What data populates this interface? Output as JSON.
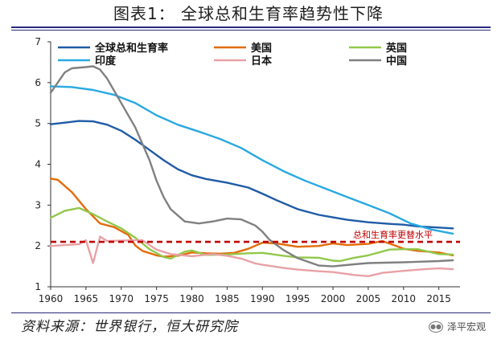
{
  "title": "图表1：  全球总和生育率趋势性下降",
  "source": "资料来源：世界银行，恒大研究院",
  "watermark": "泽平宏观",
  "chart_data": {
    "type": "line",
    "ylim": [
      1,
      7
    ],
    "xlim": [
      1960,
      2018
    ],
    "y_ticks": [
      1,
      2,
      3,
      4,
      5,
      6,
      7
    ],
    "x_ticks": [
      1960,
      1965,
      1970,
      1975,
      1980,
      1985,
      1990,
      1995,
      2000,
      2005,
      2010,
      2015
    ],
    "grid": false,
    "legend_position": "top",
    "reference_line": {
      "label": "总和生育率更替水平",
      "value": 2.1,
      "color": "#c00000"
    },
    "series": [
      {
        "name": "全球总和生育率",
        "color": "#1f5ba6",
        "x": [
          1960,
          1962,
          1964,
          1966,
          1968,
          1970,
          1972,
          1974,
          1976,
          1978,
          1980,
          1982,
          1985,
          1988,
          1990,
          1992,
          1995,
          1998,
          2000,
          2002,
          2005,
          2008,
          2010,
          2012,
          2015,
          2017
        ],
        "y": [
          4.98,
          5.02,
          5.06,
          5.05,
          4.97,
          4.82,
          4.6,
          4.35,
          4.1,
          3.88,
          3.73,
          3.64,
          3.55,
          3.43,
          3.28,
          3.12,
          2.9,
          2.76,
          2.7,
          2.64,
          2.58,
          2.54,
          2.52,
          2.48,
          2.45,
          2.43
        ]
      },
      {
        "name": "美国",
        "color": "#e36c09",
        "x": [
          1960,
          1961,
          1963,
          1965,
          1967,
          1969,
          1971,
          1972,
          1973,
          1975,
          1976,
          1978,
          1980,
          1982,
          1984,
          1986,
          1988,
          1990,
          1992,
          1995,
          1998,
          2000,
          2002,
          2005,
          2007,
          2009,
          2010,
          2012,
          2015,
          2017
        ],
        "y": [
          3.65,
          3.62,
          3.32,
          2.9,
          2.55,
          2.46,
          2.27,
          2.01,
          1.88,
          1.77,
          1.74,
          1.76,
          1.84,
          1.82,
          1.81,
          1.83,
          1.93,
          2.08,
          2.06,
          1.98,
          2.0,
          2.06,
          2.02,
          2.05,
          2.12,
          2.0,
          1.93,
          1.88,
          1.84,
          1.77
        ]
      },
      {
        "name": "英国",
        "color": "#92c84c",
        "x": [
          1960,
          1962,
          1964,
          1966,
          1968,
          1970,
          1972,
          1974,
          1976,
          1977,
          1979,
          1980,
          1982,
          1985,
          1988,
          1990,
          1993,
          1995,
          1998,
          2000,
          2001,
          2003,
          2005,
          2008,
          2010,
          2012,
          2015,
          2017
        ],
        "y": [
          2.69,
          2.86,
          2.93,
          2.78,
          2.6,
          2.43,
          2.2,
          1.92,
          1.73,
          1.69,
          1.86,
          1.89,
          1.78,
          1.79,
          1.82,
          1.83,
          1.76,
          1.72,
          1.71,
          1.64,
          1.63,
          1.71,
          1.77,
          1.91,
          1.92,
          1.92,
          1.8,
          1.79
        ]
      },
      {
        "name": "印度",
        "color": "#29a9e1",
        "x": [
          1960,
          1963,
          1966,
          1969,
          1972,
          1975,
          1978,
          1981,
          1984,
          1987,
          1990,
          1993,
          1996,
          1999,
          2002,
          2005,
          2008,
          2011,
          2014,
          2017
        ],
        "y": [
          5.91,
          5.89,
          5.82,
          5.7,
          5.5,
          5.2,
          4.97,
          4.8,
          4.62,
          4.4,
          4.1,
          3.83,
          3.6,
          3.4,
          3.2,
          3.0,
          2.8,
          2.55,
          2.4,
          2.3
        ]
      },
      {
        "name": "日本",
        "color": "#e8a1a5",
        "x": [
          1960,
          1962,
          1964,
          1965,
          1966,
          1967,
          1968,
          1970,
          1972,
          1973,
          1975,
          1977,
          1980,
          1983,
          1985,
          1987,
          1989,
          1990,
          1993,
          1995,
          1998,
          2000,
          2003,
          2005,
          2007,
          2010,
          2013,
          2015,
          2017
        ],
        "y": [
          2.0,
          2.02,
          2.04,
          2.14,
          1.58,
          2.23,
          2.12,
          2.13,
          2.14,
          2.14,
          1.91,
          1.8,
          1.75,
          1.8,
          1.76,
          1.69,
          1.57,
          1.54,
          1.46,
          1.42,
          1.38,
          1.36,
          1.29,
          1.26,
          1.34,
          1.39,
          1.43,
          1.45,
          1.43
        ]
      },
      {
        "name": "中国",
        "color": "#808080",
        "x": [
          1960,
          1961,
          1962,
          1963,
          1965,
          1966,
          1967,
          1968,
          1970,
          1972,
          1973,
          1974,
          1975,
          1976,
          1977,
          1979,
          1981,
          1983,
          1985,
          1987,
          1989,
          1990,
          1991,
          1993,
          1995,
          1998,
          2000,
          2003,
          2005,
          2010,
          2015,
          2017
        ],
        "y": [
          5.75,
          6.0,
          6.25,
          6.35,
          6.38,
          6.4,
          6.32,
          6.1,
          5.5,
          4.9,
          4.5,
          4.1,
          3.6,
          3.2,
          2.9,
          2.6,
          2.55,
          2.6,
          2.67,
          2.65,
          2.5,
          2.35,
          2.15,
          1.9,
          1.7,
          1.52,
          1.5,
          1.55,
          1.58,
          1.6,
          1.63,
          1.65
        ]
      }
    ]
  }
}
